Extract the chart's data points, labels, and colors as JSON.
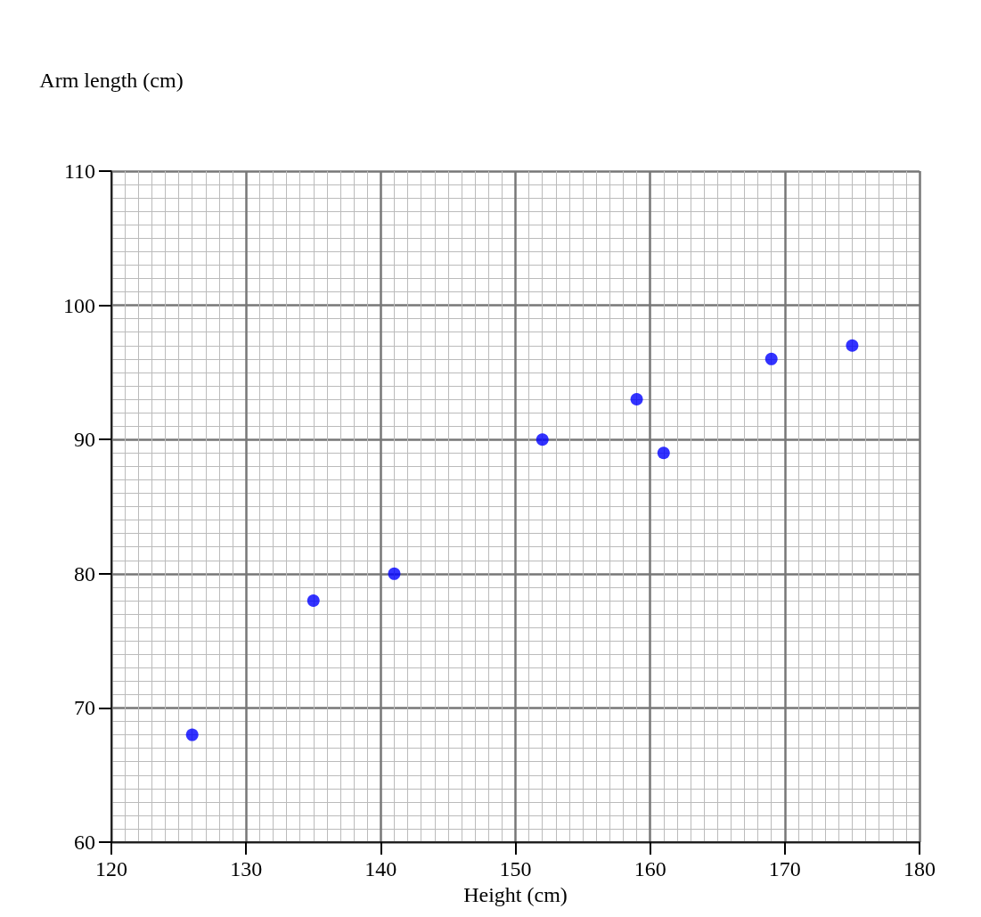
{
  "chart_data": {
    "type": "scatter",
    "xlabel": "Height (cm)",
    "ylabel": "Arm length (cm)",
    "x": [
      126,
      135,
      141,
      152,
      159,
      161,
      169,
      175
    ],
    "series": [
      {
        "color": "#0000ff",
        "values": [
          68,
          78,
          80,
          90,
          93,
          89,
          96,
          97
        ]
      }
    ],
    "xlim": [
      120,
      180
    ],
    "ylim": [
      60,
      110
    ],
    "xticks": [
      120,
      130,
      140,
      150,
      160,
      170,
      180
    ],
    "yticks": [
      60,
      70,
      80,
      90,
      100,
      110
    ],
    "grid": true,
    "marker": "circle"
  }
}
